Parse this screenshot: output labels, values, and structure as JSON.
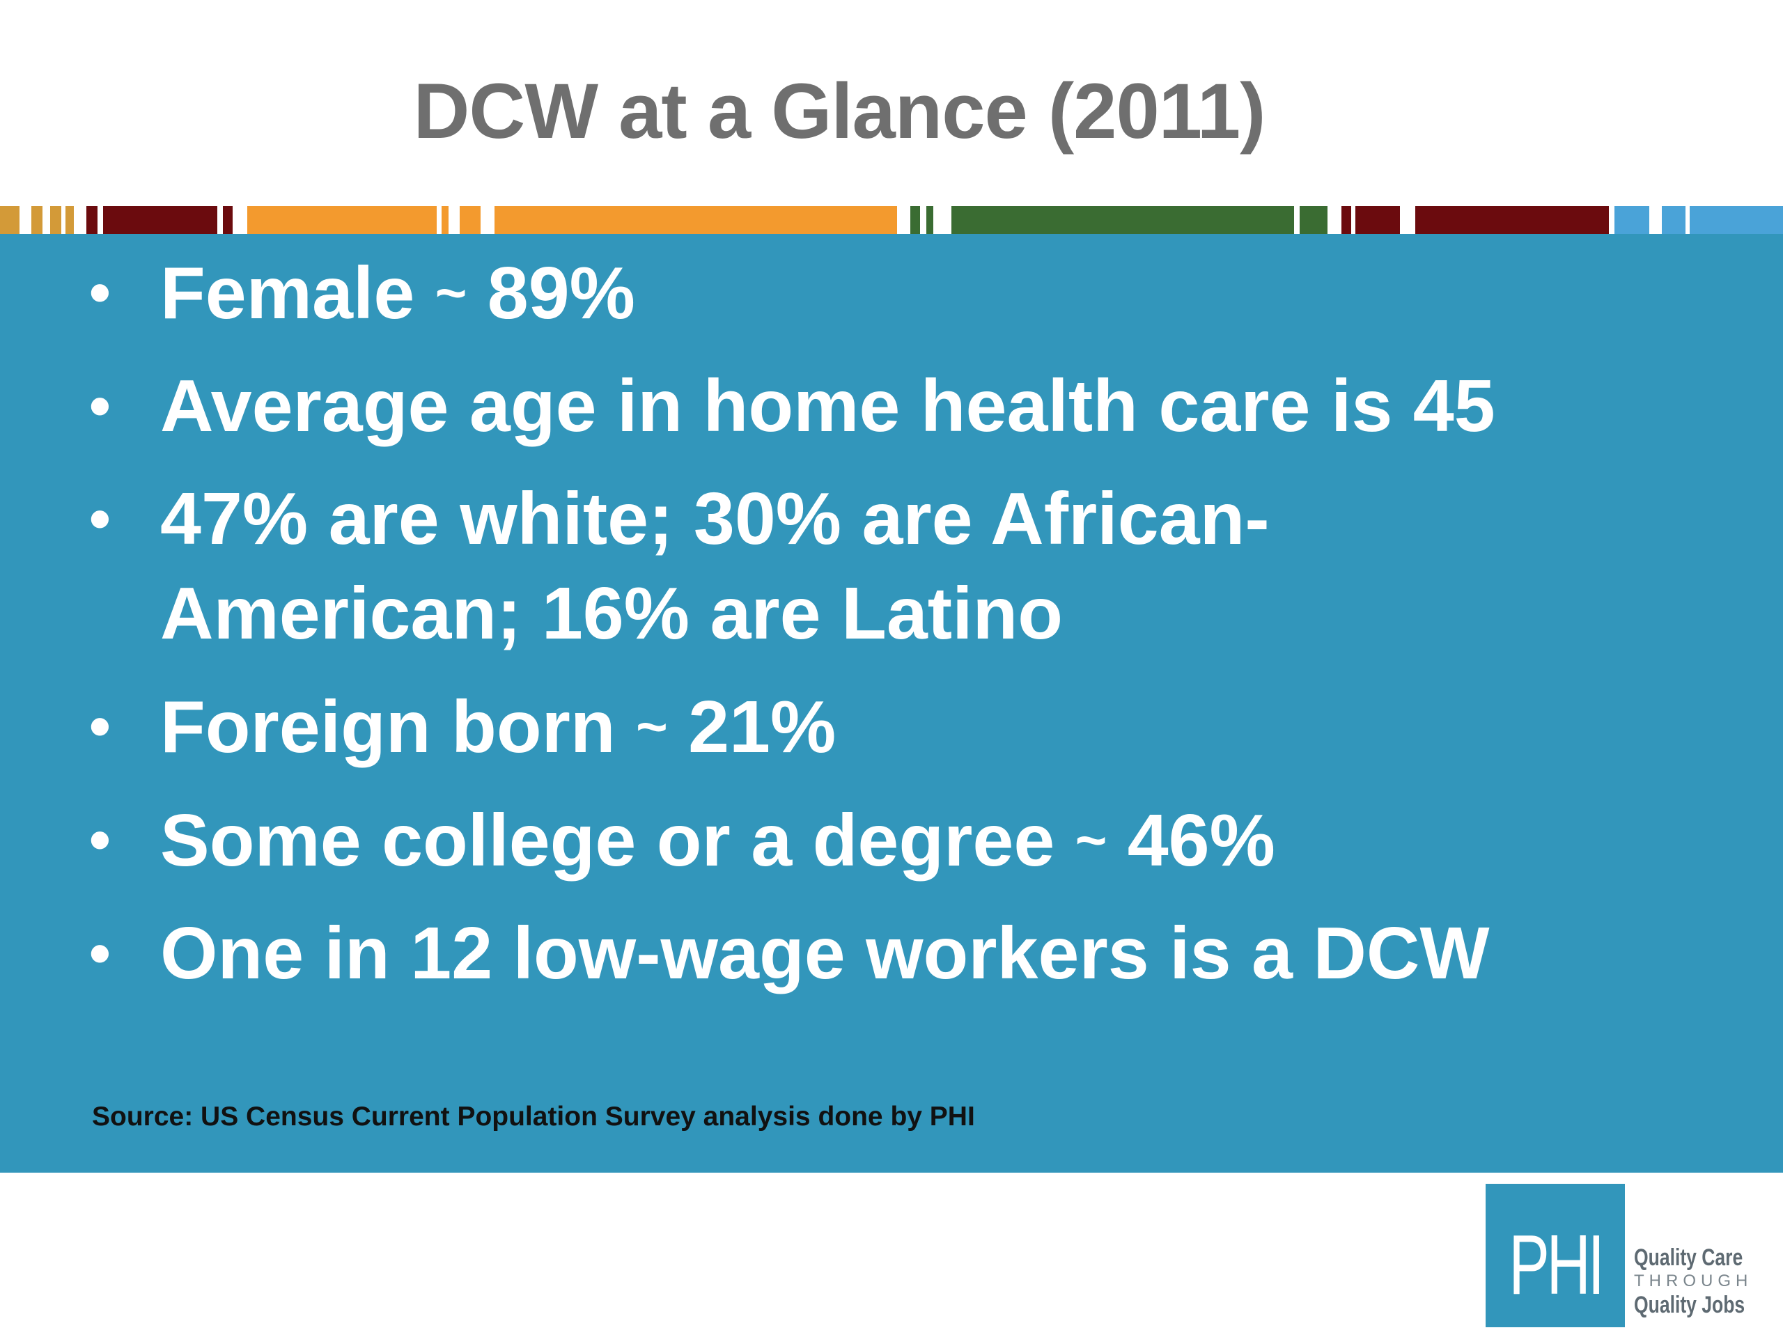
{
  "slide": {
    "title": "DCW at a Glance (2011)",
    "bullets": [
      {
        "pre": "Female ",
        "tilde": "~",
        "post": " 89%"
      },
      {
        "pre": "Average age in home health care is 45",
        "tilde": "",
        "post": ""
      },
      {
        "pre": "47% are white; 30% are African-American; 16% are Latino",
        "tilde": "",
        "post": ""
      },
      {
        "pre": "Foreign born ",
        "tilde": "~",
        "post": " 21%"
      },
      {
        "pre": "Some college or a degree ",
        "tilde": "~",
        "post": " 46%"
      },
      {
        "pre": "One in 12 low-wage workers is a DCW",
        "tilde": "",
        "post": ""
      }
    ],
    "bullet_glyph": "•",
    "source": "Source:  US Census Current Population Survey analysis done by PHI"
  },
  "logo": {
    "text": "PHI",
    "tagline_1": "Quality Care",
    "tagline_2": "THROUGH",
    "tagline_3": "Quality Jobs"
  },
  "colors": {
    "panel": "#3296bb",
    "title": "#6f6f6f",
    "gold": "#d39a38",
    "maroon": "#6b0b0e",
    "orange": "#f39a2e",
    "green": "#3a6c32",
    "light_blue": "#4aa3d8"
  }
}
